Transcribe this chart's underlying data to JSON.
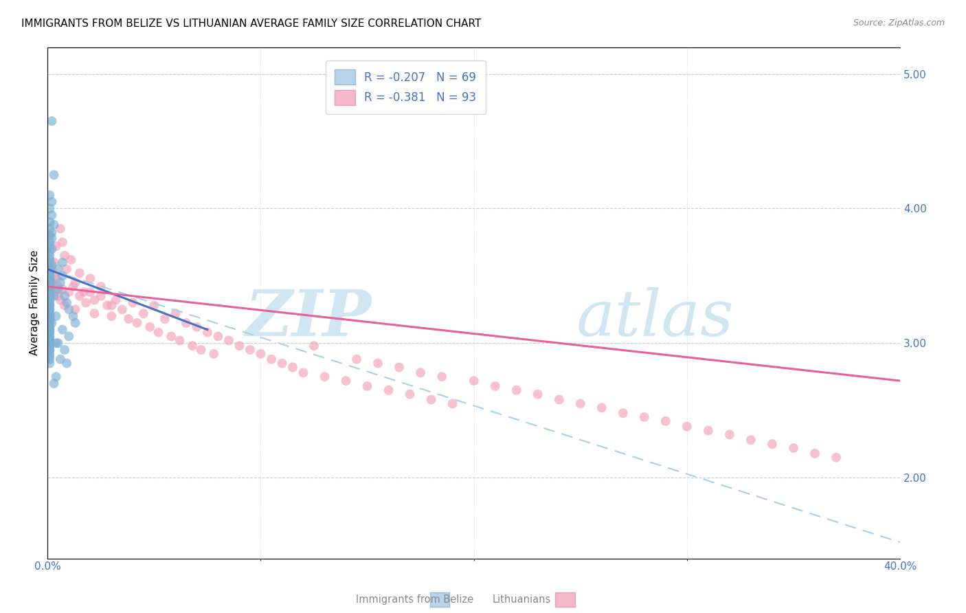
{
  "title": "IMMIGRANTS FROM BELIZE VS LITHUANIAN AVERAGE FAMILY SIZE CORRELATION CHART",
  "source": "Source: ZipAtlas.com",
  "ylabel": "Average Family Size",
  "right_yticks": [
    2.0,
    3.0,
    4.0,
    5.0
  ],
  "blue_scatter": {
    "x": [
      0.002,
      0.003,
      0.001,
      0.002,
      0.001,
      0.002,
      0.001,
      0.003,
      0.001,
      0.002,
      0.001,
      0.002,
      0.001,
      0.001,
      0.002,
      0.001,
      0.001,
      0.001,
      0.001,
      0.002,
      0.001,
      0.001,
      0.001,
      0.001,
      0.002,
      0.001,
      0.001,
      0.001,
      0.001,
      0.001,
      0.001,
      0.001,
      0.001,
      0.001,
      0.001,
      0.001,
      0.001,
      0.001,
      0.001,
      0.001,
      0.001,
      0.001,
      0.001,
      0.001,
      0.001,
      0.001,
      0.001,
      0.001,
      0.001,
      0.001,
      0.001,
      0.001,
      0.001,
      0.001,
      0.001,
      0.001,
      0.001,
      0.001,
      0.001,
      0.001,
      0.001,
      0.001,
      0.001,
      0.001,
      0.001,
      0.001,
      0.001,
      0.001,
      0.001,
      0.005,
      0.006,
      0.007,
      0.008,
      0.009,
      0.01,
      0.012,
      0.007,
      0.005,
      0.013,
      0.01,
      0.008,
      0.006,
      0.004,
      0.003,
      0.005,
      0.007,
      0.009,
      0.004,
      0.003,
      0.002,
      0.004
    ],
    "y": [
      4.65,
      4.25,
      4.1,
      4.05,
      4.0,
      3.95,
      3.9,
      3.88,
      3.85,
      3.82,
      3.8,
      3.78,
      3.75,
      3.72,
      3.7,
      3.68,
      3.65,
      3.62,
      3.6,
      3.58,
      3.55,
      3.52,
      3.5,
      3.48,
      3.45,
      3.42,
      3.4,
      3.38,
      3.35,
      3.32,
      3.3,
      3.28,
      3.25,
      3.22,
      3.2,
      3.18,
      3.15,
      3.12,
      3.1,
      3.08,
      3.05,
      3.02,
      3.0,
      2.98,
      2.95,
      2.92,
      2.9,
      2.88,
      2.85,
      3.5,
      3.45,
      3.42,
      3.38,
      3.35,
      3.32,
      3.28,
      3.25,
      3.22,
      3.2,
      3.18,
      3.15,
      3.12,
      3.1,
      3.08,
      3.05,
      3.02,
      3.0,
      2.98,
      2.95,
      3.55,
      3.45,
      3.5,
      3.35,
      3.3,
      3.25,
      3.2,
      3.1,
      3.0,
      3.15,
      3.05,
      2.95,
      2.88,
      2.75,
      2.7,
      3.4,
      3.6,
      2.85,
      3.2,
      3.35,
      3.15,
      3.0
    ]
  },
  "pink_scatter": {
    "x": [
      0.002,
      0.003,
      0.005,
      0.003,
      0.002,
      0.004,
      0.005,
      0.007,
      0.006,
      0.01,
      0.008,
      0.012,
      0.015,
      0.013,
      0.018,
      0.02,
      0.022,
      0.025,
      0.028,
      0.03,
      0.032,
      0.035,
      0.038,
      0.04,
      0.042,
      0.045,
      0.048,
      0.05,
      0.052,
      0.055,
      0.058,
      0.06,
      0.062,
      0.065,
      0.068,
      0.07,
      0.072,
      0.075,
      0.078,
      0.08,
      0.085,
      0.09,
      0.095,
      0.1,
      0.105,
      0.11,
      0.115,
      0.12,
      0.125,
      0.13,
      0.14,
      0.145,
      0.15,
      0.155,
      0.16,
      0.165,
      0.17,
      0.175,
      0.18,
      0.185,
      0.19,
      0.2,
      0.21,
      0.22,
      0.23,
      0.24,
      0.25,
      0.26,
      0.27,
      0.28,
      0.29,
      0.3,
      0.31,
      0.32,
      0.33,
      0.34,
      0.35,
      0.36,
      0.37,
      0.003,
      0.004,
      0.006,
      0.007,
      0.008,
      0.009,
      0.011,
      0.013,
      0.015,
      0.017,
      0.02,
      0.022,
      0.025,
      0.03
    ],
    "y": [
      3.45,
      3.5,
      3.42,
      3.38,
      3.55,
      3.48,
      3.35,
      3.4,
      3.32,
      3.38,
      3.28,
      3.42,
      3.35,
      3.25,
      3.3,
      3.38,
      3.22,
      3.35,
      3.28,
      3.2,
      3.32,
      3.25,
      3.18,
      3.3,
      3.15,
      3.22,
      3.12,
      3.28,
      3.08,
      3.18,
      3.05,
      3.22,
      3.02,
      3.15,
      2.98,
      3.12,
      2.95,
      3.08,
      2.92,
      3.05,
      3.02,
      2.98,
      2.95,
      2.92,
      2.88,
      2.85,
      2.82,
      2.78,
      2.98,
      2.75,
      2.72,
      2.88,
      2.68,
      2.85,
      2.65,
      2.82,
      2.62,
      2.78,
      2.58,
      2.75,
      2.55,
      2.72,
      2.68,
      2.65,
      2.62,
      2.58,
      2.55,
      2.52,
      2.48,
      2.45,
      2.42,
      2.38,
      2.35,
      2.32,
      2.28,
      2.25,
      2.22,
      2.18,
      2.15,
      3.6,
      3.72,
      3.85,
      3.75,
      3.65,
      3.55,
      3.62,
      3.45,
      3.52,
      3.38,
      3.48,
      3.32,
      3.42,
      3.28
    ]
  },
  "blue_line": {
    "x0": 0.0,
    "y0": 3.55,
    "x1": 0.075,
    "y1": 3.1
  },
  "pink_line": {
    "x0": 0.0,
    "y0": 3.42,
    "x1": 0.4,
    "y1": 2.72
  },
  "dashed_line": {
    "x0": 0.0,
    "y0": 3.55,
    "x1": 0.4,
    "y1": 1.52
  },
  "xlim": [
    0.0,
    0.4
  ],
  "ylim": [
    1.4,
    5.2
  ],
  "blue_scatter_color": "#7bafd4",
  "pink_scatter_color": "#f4a0b8",
  "blue_line_color": "#4472c4",
  "pink_line_color": "#e8609a",
  "dashed_color": "#a8d0e8",
  "legend_blue_patch": "#b8d4ea",
  "legend_pink_patch": "#f4b8c8",
  "right_tick_color": "#4472c4",
  "title_fontsize": 11,
  "source_fontsize": 9,
  "watermark_zip_color": "#cce4f2",
  "watermark_atlas_color": "#cce4f2"
}
